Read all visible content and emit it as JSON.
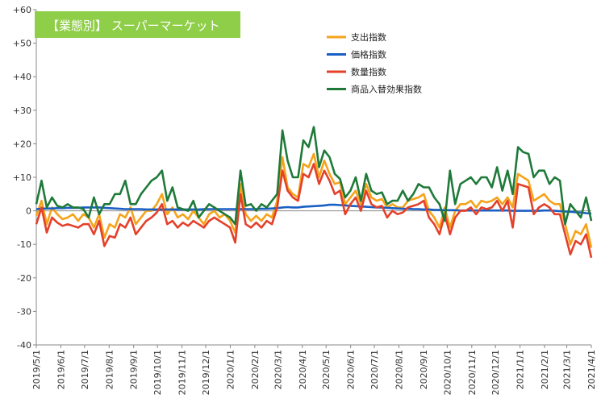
{
  "chart_data": {
    "type": "line",
    "title": "【業態別】 スーパーマーケット",
    "title_bg": "#8fce48",
    "xlabel": "",
    "ylabel": "",
    "ylim": [
      -40,
      60
    ],
    "y_ticks": [
      {
        "value": 60,
        "label": "+60"
      },
      {
        "value": 50,
        "label": "+50"
      },
      {
        "value": 40,
        "label": "+40"
      },
      {
        "value": 30,
        "label": "+30"
      },
      {
        "value": 20,
        "label": "+20"
      },
      {
        "value": 10,
        "label": "+10"
      },
      {
        "value": 0,
        "label": "0"
      },
      {
        "value": -10,
        "label": "-10"
      },
      {
        "value": -20,
        "label": "-20"
      },
      {
        "value": -30,
        "label": "-30"
      },
      {
        "value": -40,
        "label": "-40"
      }
    ],
    "x_ticks": [
      "2019/5/1",
      "2019/6/1",
      "2019/7/1",
      "2019/8/1",
      "2019/9/1",
      "2019/10/1",
      "2019/11/1",
      "2019/12/1",
      "2020/1/1",
      "2020/2/1",
      "2020/3/1",
      "2020/4/1",
      "2020/5/1",
      "2020/6/1",
      "2020/7/1",
      "2020/8/1",
      "2020/9/1",
      "2020/10/1",
      "2020/11/1",
      "2020/12/1",
      "2021/1/1",
      "2021/2/1",
      "2021/3/1",
      "2021/4/1"
    ],
    "x_start": "2019/5/1",
    "x_end": "2021/4/1",
    "legend_position": "top-right",
    "grid": false,
    "series": [
      {
        "name": "支出指数",
        "color": "#f5a31a",
        "values": [
          -1.5,
          3,
          -4,
          1,
          -1,
          -2.5,
          -2,
          -1,
          -3,
          -1,
          -2,
          -5,
          -1,
          -8,
          -4,
          -5,
          -1,
          -2,
          1,
          -4,
          -2,
          0,
          0,
          2,
          5,
          -1,
          1,
          -2,
          -1,
          -2.5,
          0,
          -2,
          -4,
          -1,
          0,
          -2,
          -1,
          -3,
          -6.5,
          8,
          -1,
          -3,
          -1.5,
          -3,
          -1,
          -2,
          3,
          16,
          7,
          5,
          4,
          14,
          13,
          17,
          10,
          15,
          11,
          8,
          8.5,
          2,
          4,
          6,
          2,
          8,
          4,
          3,
          3.5,
          1,
          2,
          1,
          1,
          3,
          3.5,
          4,
          5,
          0,
          -2,
          -5,
          1,
          -5,
          0,
          2,
          2,
          3,
          1,
          3,
          2.5,
          3,
          4,
          2,
          4,
          1,
          11,
          10,
          9,
          3,
          4,
          5,
          3,
          2,
          2,
          -4,
          -10,
          -6,
          -7,
          -4,
          -11
        ],
        "labels": []
      },
      {
        "name": "価格指数",
        "color": "#1a5fc4",
        "values": [
          0.5,
          0.6,
          0.7,
          0.7,
          0.8,
          0.8,
          0.9,
          0.9,
          0.9,
          1.0,
          1.0,
          1.0,
          1.0,
          0.9,
          0.8,
          0.7,
          0.6,
          0.5,
          0.5,
          0.5,
          0.5,
          0.4,
          0.4,
          0.4,
          0.4,
          0.4,
          0.4,
          0.4,
          0.4,
          0.4,
          0.4,
          0.4,
          0.5,
          0.5,
          0.5,
          0.5,
          0.5,
          0.5,
          0.5,
          0.5,
          0.5,
          0.5,
          0.5,
          0.6,
          0.6,
          0.7,
          0.8,
          1.0,
          1.1,
          1.0,
          1.0,
          1.2,
          1.3,
          1.4,
          1.5,
          1.6,
          1.8,
          1.8,
          1.7,
          1.6,
          1.5,
          1.4,
          1.3,
          1.2,
          1.1,
          1.0,
          1.0,
          0.9,
          0.8,
          0.7,
          0.6,
          0.6,
          0.5,
          0.5,
          0.4,
          0.4,
          0.3,
          0.3,
          0.2,
          0.2,
          0.2,
          0.1,
          0.1,
          0.1,
          0.1,
          0.1,
          0.1,
          0.1,
          0.1,
          0.1,
          0.1,
          0.0,
          0.0,
          0.0,
          0.0,
          0.0,
          0.0,
          0.1,
          0.1,
          0.0,
          -0.1,
          -0.2,
          -0.3,
          -0.4,
          -0.5,
          -0.7,
          -0.8
        ],
        "labels": []
      },
      {
        "name": "数量指数",
        "color": "#e4402a",
        "values": [
          -4,
          1,
          -6.5,
          -2,
          -3.5,
          -4.5,
          -4,
          -4.5,
          -5,
          -4,
          -4,
          -7,
          -3,
          -10.5,
          -7.5,
          -8,
          -4,
          -5,
          -2,
          -7,
          -5,
          -3,
          -2,
          -0.5,
          2,
          -4,
          -3,
          -5,
          -3.5,
          -4.5,
          -3,
          -4,
          -5,
          -3,
          -2,
          -3,
          -4,
          -5,
          -9.5,
          5,
          -4,
          -5,
          -3.5,
          -5,
          -3,
          -4,
          1,
          12,
          6,
          4,
          3,
          11,
          10,
          14,
          8,
          12,
          9,
          5,
          6,
          -1,
          2,
          4,
          0,
          6,
          2,
          1,
          1.5,
          -2,
          0,
          -1,
          -0.5,
          1,
          1.5,
          2,
          3,
          -2,
          -4,
          -7,
          -1,
          -7,
          -2,
          0,
          0,
          1,
          -1,
          1,
          0.5,
          1,
          3,
          0,
          3,
          -5,
          8,
          7.5,
          7,
          -1,
          1,
          2,
          1,
          -1,
          -1,
          -7,
          -13,
          -9,
          -10,
          -7,
          -14
        ],
        "labels": []
      },
      {
        "name": "商品入替効果指数",
        "color": "#1f7a3a",
        "values": [
          2,
          9,
          1,
          4,
          1.5,
          1,
          2,
          1,
          1,
          0.5,
          -2,
          4,
          -1,
          2,
          2,
          5,
          5,
          9,
          2,
          2,
          5,
          7,
          9,
          10,
          12,
          3,
          7,
          1,
          0.5,
          0,
          3,
          -2,
          0,
          2,
          1,
          0,
          -1,
          -2,
          -4,
          12,
          1.5,
          2,
          0,
          2,
          1,
          3,
          5,
          24,
          15,
          10,
          10,
          21,
          19,
          25,
          13,
          18,
          16,
          11,
          9.5,
          4,
          6,
          10,
          3,
          11,
          6,
          5,
          5.5,
          2,
          3,
          3,
          6,
          3,
          5,
          8,
          7,
          7,
          4,
          2,
          -3,
          12,
          2,
          8,
          9,
          10,
          8,
          10,
          10,
          7,
          13,
          6,
          12,
          5,
          19,
          17.5,
          17,
          10,
          12,
          12,
          8,
          10,
          9,
          -4,
          2,
          0,
          -2,
          4,
          -3
        ],
        "labels": []
      }
    ]
  }
}
